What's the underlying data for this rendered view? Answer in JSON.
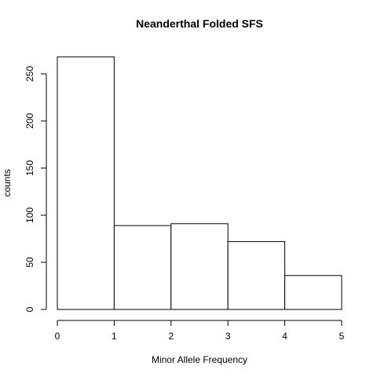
{
  "chart_data": {
    "type": "bar",
    "title": "Neanderthal Folded SFS",
    "xlabel": "Minor Allele Frequency",
    "ylabel": "counts",
    "bins": [
      {
        "from": 0,
        "to": 1,
        "value": 268
      },
      {
        "from": 1,
        "to": 2,
        "value": 89
      },
      {
        "from": 2,
        "to": 3,
        "value": 91
      },
      {
        "from": 3,
        "to": 4,
        "value": 72
      },
      {
        "from": 4,
        "to": 5,
        "value": 36
      }
    ],
    "xlim": [
      0,
      5
    ],
    "ylim": [
      0,
      270
    ],
    "xticks": [
      "0",
      "1",
      "2",
      "3",
      "4",
      "5"
    ],
    "yticks": [
      "0",
      "50",
      "100",
      "150",
      "200",
      "250"
    ],
    "grid": false,
    "legend": "none",
    "bar_fill": "#ffffff",
    "bar_stroke": "#000000"
  }
}
